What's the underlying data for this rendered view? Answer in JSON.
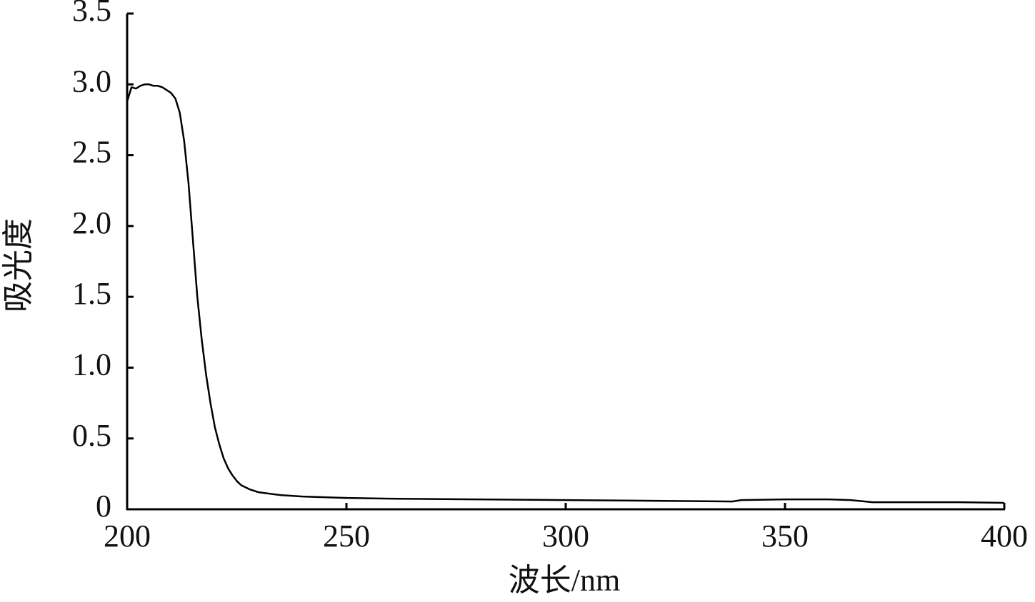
{
  "chart_data": {
    "type": "line",
    "x_label": "波长/nm",
    "y_label": "吸光度",
    "x": [
      200,
      201,
      202,
      203,
      204,
      205,
      206,
      207,
      208,
      209,
      210,
      211,
      212,
      213,
      214,
      215,
      216,
      217,
      218,
      219,
      220,
      221,
      222,
      223,
      224,
      225,
      226,
      228,
      230,
      235,
      240,
      250,
      260,
      280,
      300,
      320,
      338,
      340,
      350,
      360,
      365,
      370,
      380,
      390,
      400
    ],
    "values": [
      2.88,
      2.98,
      2.97,
      2.99,
      3.0,
      3.0,
      2.99,
      2.99,
      2.98,
      2.96,
      2.94,
      2.9,
      2.8,
      2.6,
      2.3,
      1.9,
      1.5,
      1.2,
      0.95,
      0.75,
      0.58,
      0.46,
      0.36,
      0.29,
      0.24,
      0.2,
      0.17,
      0.14,
      0.12,
      0.1,
      0.09,
      0.08,
      0.075,
      0.07,
      0.065,
      0.06,
      0.055,
      0.065,
      0.07,
      0.07,
      0.065,
      0.05,
      0.05,
      0.05,
      0.045
    ],
    "color": "#000000",
    "xlim": [
      200,
      400
    ],
    "xticks": [
      200,
      250,
      300,
      350,
      400
    ],
    "ylim": [
      0,
      3.5
    ],
    "yticks": [
      0,
      0.5,
      {
        "value": 1,
        "label": "1.0"
      },
      1.5,
      {
        "value": 2,
        "label": "2.0"
      },
      2.5,
      {
        "value": 3,
        "label": "3.0"
      },
      3.5
    ],
    "grid": false
  }
}
